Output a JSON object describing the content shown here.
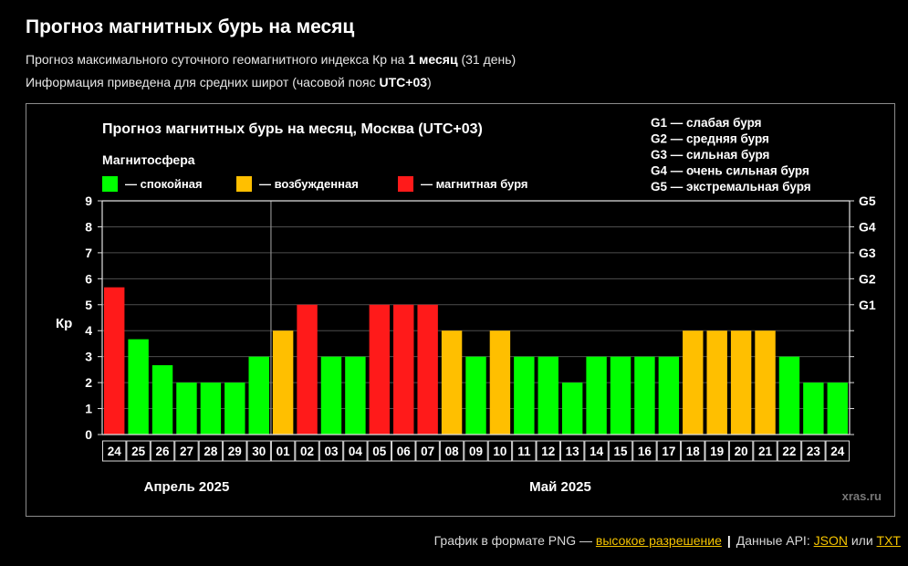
{
  "header": {
    "title": "Прогноз магнитных бурь на месяц",
    "line1_prefix": "Прогноз максимального суточного геомагнитного индекса Кр на ",
    "line1_bold": "1 месяц",
    "line1_suffix": " (31 день)",
    "line2_prefix": "Информация приведена для средних широт (часовой пояс ",
    "line2_bold": "UTC+03",
    "line2_suffix": ")"
  },
  "chart_data": {
    "type": "bar",
    "title": "Прогноз магнитных бурь на месяц, Москва (UTC+03)",
    "legend_title": "Магнитосфера",
    "legend": [
      {
        "label": "— спокойная",
        "color": "#00ff00"
      },
      {
        "label": "— возбужденная",
        "color": "#ffbf00"
      },
      {
        "label": "— магнитная буря",
        "color": "#ff1a1a"
      }
    ],
    "storm_legend": [
      "G1 — слабая буря",
      "G2 — средняя буря",
      "G3 — сильная буря",
      "G4 — очень сильная буря",
      "G5 — экстремальная буря"
    ],
    "ylabel": "Кр",
    "ylim": [
      0,
      9
    ],
    "yticks": [
      "0",
      "1",
      "2",
      "3",
      "4",
      "5",
      "6",
      "7",
      "8",
      "9"
    ],
    "right_ticks": [
      {
        "label": "G1",
        "value": 5
      },
      {
        "label": "G2",
        "value": 6
      },
      {
        "label": "G3",
        "value": 7
      },
      {
        "label": "G4",
        "value": 8
      },
      {
        "label": "G5",
        "value": 9
      }
    ],
    "grid": true,
    "categories": [
      "24",
      "25",
      "26",
      "27",
      "28",
      "29",
      "30",
      "01",
      "02",
      "03",
      "04",
      "05",
      "06",
      "07",
      "08",
      "09",
      "10",
      "11",
      "12",
      "13",
      "14",
      "15",
      "16",
      "17",
      "18",
      "19",
      "20",
      "21",
      "22",
      "23",
      "24"
    ],
    "values": [
      5.67,
      3.67,
      2.67,
      2,
      2,
      2,
      3,
      4,
      5,
      3,
      3,
      5,
      5,
      5,
      4,
      3,
      4,
      3,
      3,
      2,
      3,
      3,
      3,
      3,
      4,
      4,
      4,
      4,
      3,
      2,
      2
    ],
    "colors": {
      "quiet": "#00ff00",
      "active": "#ffbf00",
      "storm": "#ff1a1a"
    },
    "months": [
      {
        "label": "Апрель 2025",
        "start": 0,
        "end": 6
      },
      {
        "label": "Май 2025",
        "start": 7,
        "end": 30
      }
    ],
    "watermark": "xras.ru"
  },
  "footer": {
    "png_text": "График в формате PNG — ",
    "png_link": "высокое разрешение",
    "separator": "|",
    "api_text": "Данные API: ",
    "json_link": "JSON",
    "or_text": " или ",
    "txt_link": "TXT"
  }
}
